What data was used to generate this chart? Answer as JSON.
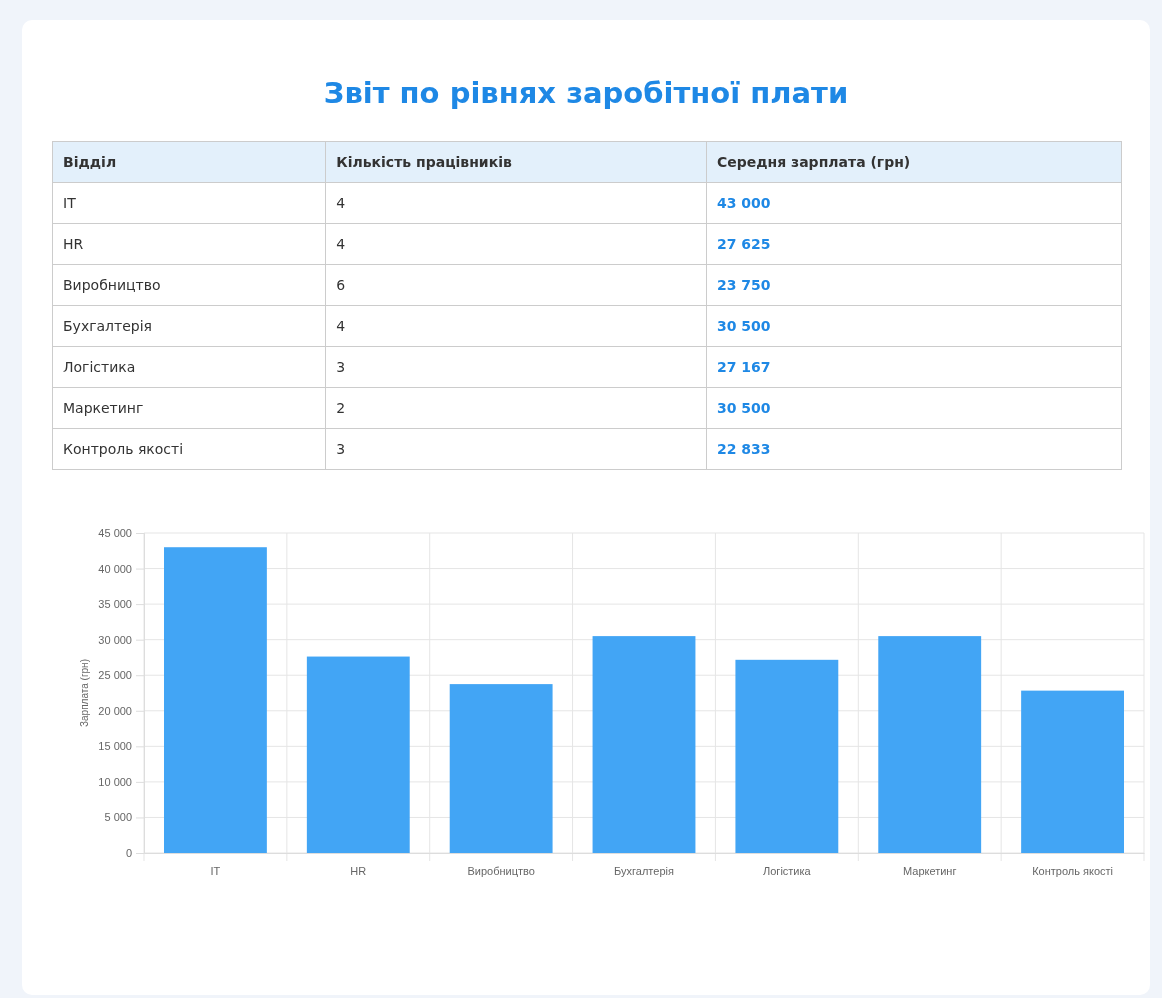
{
  "chart_data": [
    {
      "type": "other",
      "title": "Звіт по рівнях заробітної плати",
      "annotations": [
        "Відділ",
        "Кількість працівників",
        "Середня зарплата (грн)",
        "IT",
        "4",
        "43 000",
        "HR",
        "4",
        "27 625",
        "Виробництво",
        "6",
        "23 750",
        "Бухгалтерія",
        "4",
        "30 500",
        "Логістика",
        "3",
        "27 167",
        "Маркетинг",
        "2",
        "30 500",
        "Контроль якості",
        "3",
        "22 833"
      ]
    },
    {
      "type": "bar",
      "ylabel": "Зарплата (грн)",
      "categories": [
        "IT",
        "HR",
        "Виробництво",
        "Бухгалтерія",
        "Логістика",
        "Маркетинг",
        "Контроль якості"
      ],
      "values": [
        43000,
        27625,
        23750,
        30500,
        27167,
        30500,
        22833
      ],
      "color": "#42a5f5",
      "ylim": [
        0,
        45000
      ],
      "yticks": [
        {
          "value": 0,
          "label": "0"
        },
        {
          "value": 5000,
          "label": "5 000"
        },
        {
          "value": 10000,
          "label": "10 000"
        },
        {
          "value": 15000,
          "label": "15 000"
        },
        {
          "value": 20000,
          "label": "20 000"
        },
        {
          "value": 25000,
          "label": "25 000"
        },
        {
          "value": 30000,
          "label": "30 000"
        },
        {
          "value": 35000,
          "label": "35 000"
        },
        {
          "value": 40000,
          "label": "40 000"
        },
        {
          "value": 45000,
          "label": "45 000"
        }
      ],
      "grid": true
    }
  ]
}
